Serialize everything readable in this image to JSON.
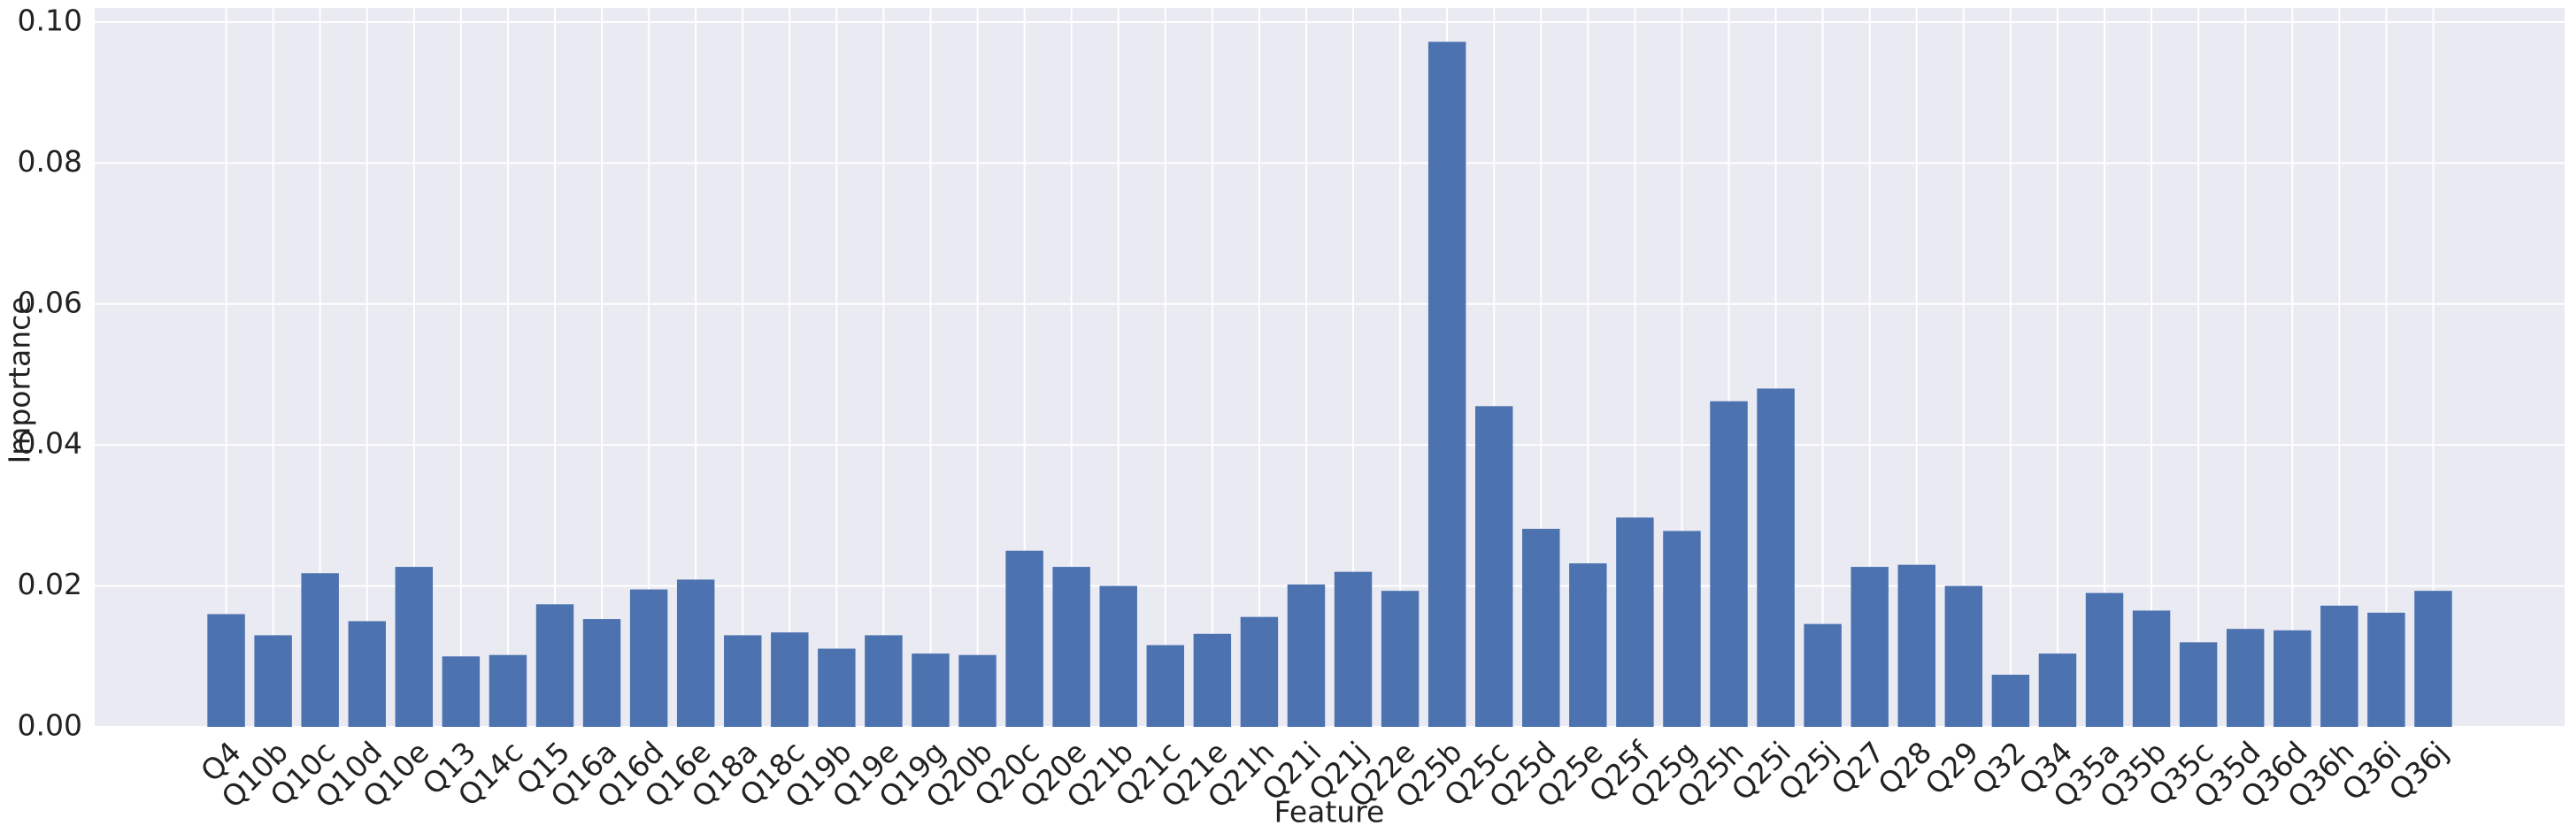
{
  "chart_data": {
    "type": "bar",
    "x_label": "Feature",
    "y_label": "Importance",
    "categories": [
      "Q4",
      "Q10b",
      "Q10c",
      "Q10d",
      "Q10e",
      "Q13",
      "Q14c",
      "Q15",
      "Q16a",
      "Q16d",
      "Q16e",
      "Q18a",
      "Q18c",
      "Q19b",
      "Q19e",
      "Q19g",
      "Q20b",
      "Q20c",
      "Q20e",
      "Q21b",
      "Q21c",
      "Q21e",
      "Q21h",
      "Q21i",
      "Q21j",
      "Q22e",
      "Q25b",
      "Q25c",
      "Q25d",
      "Q25e",
      "Q25f",
      "Q25g",
      "Q25h",
      "Q25i",
      "Q25j",
      "Q27",
      "Q28",
      "Q29",
      "Q32",
      "Q34",
      "Q35a",
      "Q35b",
      "Q35c",
      "Q35d",
      "Q36d",
      "Q36h",
      "Q36i",
      "Q36j"
    ],
    "values": [
      0.016,
      0.013,
      0.0218,
      0.015,
      0.0227,
      0.01,
      0.0102,
      0.0174,
      0.0153,
      0.0195,
      0.0209,
      0.013,
      0.0134,
      0.0111,
      0.013,
      0.0104,
      0.0102,
      0.025,
      0.0227,
      0.02,
      0.0116,
      0.0132,
      0.0156,
      0.0202,
      0.022,
      0.0193,
      0.0972,
      0.0455,
      0.0281,
      0.0232,
      0.0297,
      0.0278,
      0.0462,
      0.048,
      0.0146,
      0.0227,
      0.023,
      0.02,
      0.0074,
      0.0104,
      0.019,
      0.0165,
      0.012,
      0.0139,
      0.0137,
      0.0172,
      0.0162,
      0.0193
    ],
    "color": "#4c72b0",
    "ylim": [
      0,
      0.102
    ],
    "yticks": [
      {
        "value": 0,
        "label": "0.00"
      },
      {
        "value": 0.02,
        "label": "0.02"
      },
      {
        "value": 0.04,
        "label": "0.04"
      },
      {
        "value": 0.06,
        "label": "0.06"
      },
      {
        "value": 0.08,
        "label": "0.08"
      },
      {
        "value": 0.1,
        "label": "0.10"
      }
    ],
    "grid": true
  }
}
